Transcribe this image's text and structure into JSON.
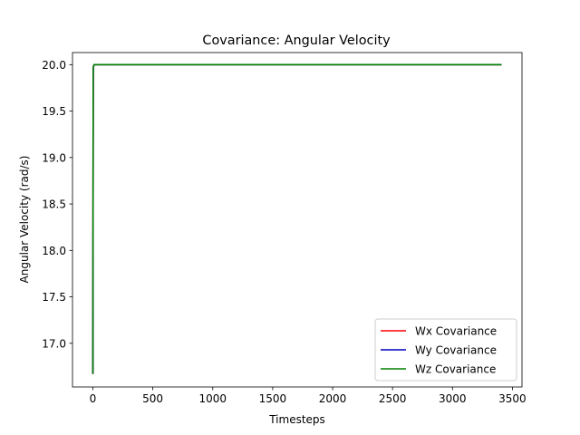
{
  "chart_data": {
    "type": "line",
    "title": "Covariance: Angular Velocity",
    "xlabel": "Timesteps",
    "ylabel": "Angular Velocity (rad/s)",
    "xlim": [
      -170,
      3580
    ],
    "ylim": [
      16.53,
      20.13
    ],
    "xticks": [
      0,
      500,
      1000,
      1500,
      2000,
      2500,
      3000,
      3500
    ],
    "xtick_labels": [
      "0",
      "500",
      "1000",
      "1500",
      "2000",
      "2500",
      "3000",
      "3500"
    ],
    "yticks": [
      17.0,
      17.5,
      18.0,
      18.5,
      19.0,
      19.5,
      20.0
    ],
    "ytick_labels": [
      "17.0",
      "17.5",
      "18.0",
      "18.5",
      "19.0",
      "19.5",
      "20.0"
    ],
    "grid": false,
    "legend_position": "lower-right",
    "series": [
      {
        "name": "Wx Covariance",
        "color": "#ff0000",
        "x": [
          0,
          3,
          10,
          3410
        ],
        "y": [
          16.67,
          19.97,
          20.0,
          20.0
        ]
      },
      {
        "name": "Wy Covariance",
        "color": "#0000bf",
        "x": [
          0,
          3,
          10,
          3410
        ],
        "y": [
          16.67,
          19.97,
          20.0,
          20.0
        ]
      },
      {
        "name": "Wz Covariance",
        "color": "#008000",
        "x": [
          0,
          3,
          10,
          3410
        ],
        "y": [
          16.67,
          19.97,
          20.0,
          20.0
        ]
      }
    ]
  }
}
